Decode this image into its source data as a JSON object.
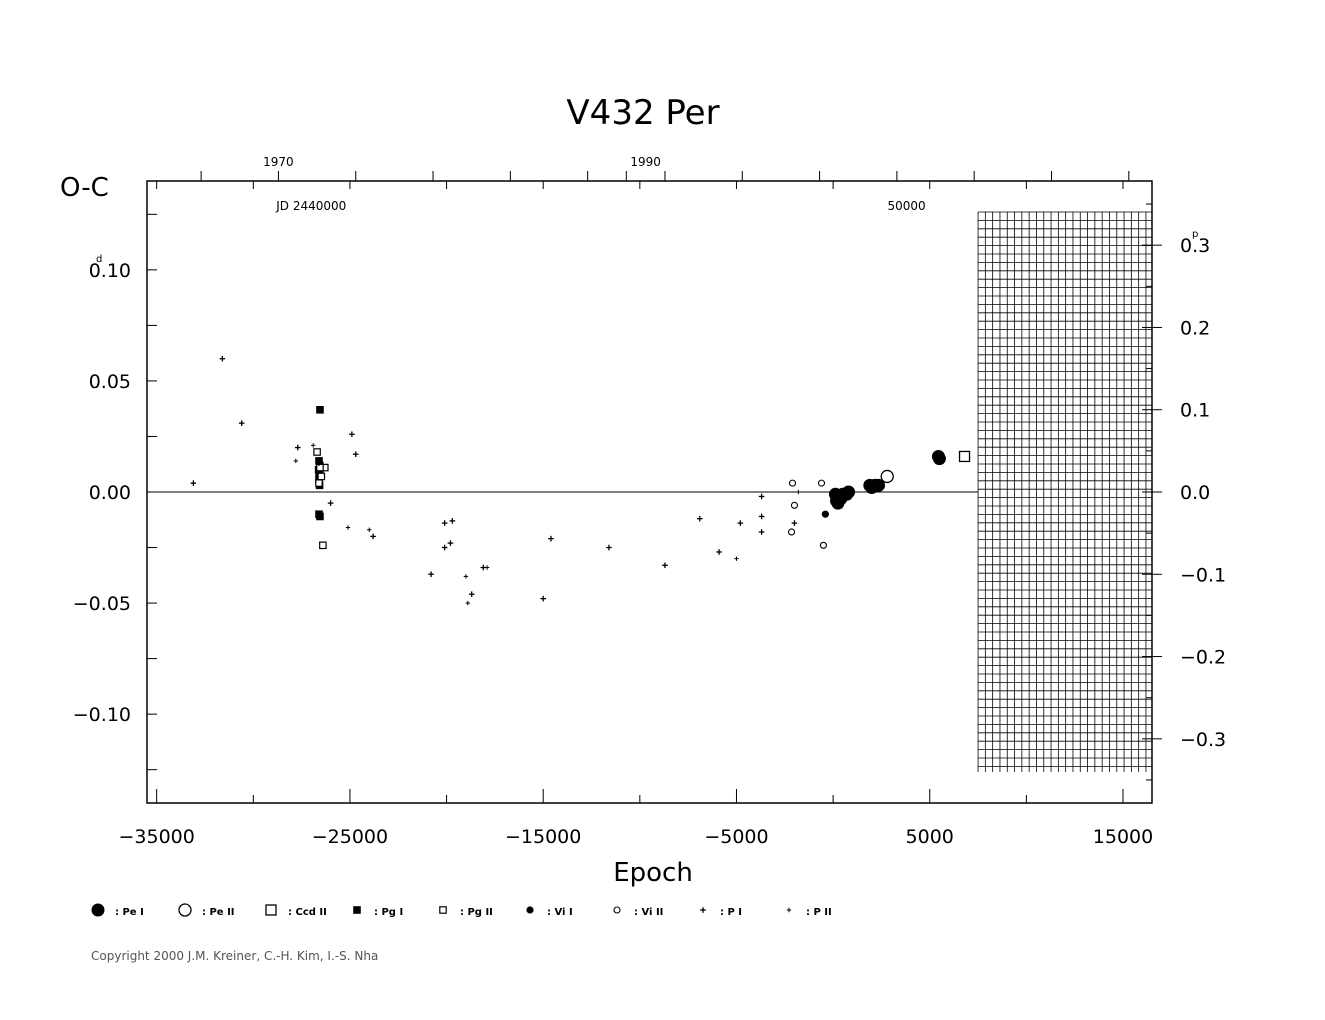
{
  "chart_data": {
    "type": "scatter",
    "title": "V432 Per",
    "xlabel": "Epoch",
    "ylabel": "O-C",
    "xlim": [
      -35500,
      16500
    ],
    "ylim": [
      -0.14,
      0.14
    ],
    "x_ticks": [
      -35000,
      -25000,
      -15000,
      -5000,
      5000,
      15000
    ],
    "x_tick_labels": [
      "−35000",
      "−25000",
      "−15000",
      "−5000",
      "5000",
      "15000"
    ],
    "y_ticks_left": [
      0.1,
      0.05,
      0.0,
      -0.05,
      -0.1
    ],
    "y_tick_labels_left": [
      "0.10",
      "0.05",
      "0.00",
      "−0.05",
      "−0.10"
    ],
    "y_left_unit": "d",
    "y_ticks_right": [
      0.3,
      0.2,
      0.1,
      0.0,
      -0.1,
      -0.2,
      -0.3
    ],
    "y_tick_labels_right": [
      "0.3",
      "0.2",
      "0.1",
      "0.0",
      "−0.1",
      "−0.2",
      "−0.3"
    ],
    "y_right_unit": "p",
    "y_right_per_left": 2.7,
    "top_axis": {
      "year_labels": [
        {
          "x": -28700,
          "text": "1970"
        },
        {
          "x": -9700,
          "text": "1990"
        }
      ],
      "year_ticks": [
        -32700,
        -28700,
        -24700,
        -20700,
        -16700,
        -12700,
        -10700,
        -8700,
        -4700,
        -700,
        3300,
        7300,
        11300,
        15300
      ],
      "jd_labels": [
        {
          "x": -27000,
          "text": "JD 2440000"
        },
        {
          "x": 3800,
          "text": "50000"
        }
      ]
    },
    "hatched_region": {
      "x_from": 7500,
      "x_to": 16500
    },
    "zero_line": true,
    "legend": [
      {
        "symbol": "pe1",
        "label": ": Pe I"
      },
      {
        "symbol": "pe2",
        "label": ": Pe II"
      },
      {
        "symbol": "ccd2",
        "label": ": Ccd II"
      },
      {
        "symbol": "pg1",
        "label": ": Pg I"
      },
      {
        "symbol": "pg2",
        "label": ": Pg II"
      },
      {
        "symbol": "vi1",
        "label": ": Vi I"
      },
      {
        "symbol": "vi2",
        "label": ": Vi II"
      },
      {
        "symbol": "p1",
        "label": ": P I"
      },
      {
        "symbol": "p2",
        "label": ": P II"
      }
    ],
    "series": [
      {
        "symbol": "pe1",
        "points": [
          [
            120,
            -0.001
          ],
          [
            180,
            -0.004
          ],
          [
            250,
            -0.005
          ],
          [
            320,
            -0.002
          ],
          [
            400,
            -0.003
          ],
          [
            500,
            -0.001
          ],
          [
            700,
            -0.001
          ],
          [
            800,
            0.0
          ],
          [
            1900,
            0.003
          ],
          [
            2000,
            0.002
          ],
          [
            2150,
            0.003
          ],
          [
            2250,
            0.003
          ],
          [
            2350,
            0.003
          ],
          [
            5450,
            0.016
          ],
          [
            5500,
            0.015
          ]
        ]
      },
      {
        "symbol": "pe2",
        "points": [
          [
            2800,
            0.007
          ]
        ]
      },
      {
        "symbol": "ccd2",
        "points": [
          [
            6800,
            0.016
          ]
        ]
      },
      {
        "symbol": "pg1",
        "points": [
          [
            -26550,
            0.037
          ],
          [
            -26600,
            0.014
          ],
          [
            -26560,
            0.012
          ],
          [
            -26620,
            0.01
          ],
          [
            -26590,
            0.009
          ],
          [
            -26560,
            0.008
          ],
          [
            -26600,
            0.006
          ],
          [
            -26570,
            0.003
          ],
          [
            -26600,
            -0.01
          ],
          [
            -26550,
            -0.011
          ]
        ]
      },
      {
        "symbol": "pg2",
        "points": [
          [
            -26700,
            0.018
          ],
          [
            -26300,
            0.011
          ],
          [
            -26550,
            0.011
          ],
          [
            -26480,
            0.007
          ],
          [
            -26600,
            0.004
          ],
          [
            -26400,
            -0.024
          ]
        ]
      },
      {
        "symbol": "vi1",
        "points": [
          [
            -400,
            -0.01
          ]
        ]
      },
      {
        "symbol": "vi2",
        "points": [
          [
            -2100,
            0.004
          ],
          [
            -2000,
            -0.006
          ],
          [
            -2150,
            -0.018
          ],
          [
            -600,
            0.004
          ],
          [
            -500,
            -0.024
          ]
        ]
      },
      {
        "symbol": "p1",
        "points": [
          [
            -33100,
            0.004
          ],
          [
            -31600,
            0.06
          ],
          [
            -30600,
            0.031
          ],
          [
            -27700,
            0.02
          ],
          [
            -26600,
            0.013
          ],
          [
            -26000,
            -0.005
          ],
          [
            -24900,
            0.026
          ],
          [
            -24700,
            0.017
          ],
          [
            -23800,
            -0.02
          ],
          [
            -20800,
            -0.037
          ],
          [
            -20100,
            -0.014
          ],
          [
            -19700,
            -0.013
          ],
          [
            -20100,
            -0.025
          ],
          [
            -19800,
            -0.023
          ],
          [
            -18700,
            -0.046
          ],
          [
            -18100,
            -0.034
          ],
          [
            -15000,
            -0.048
          ],
          [
            -14600,
            -0.021
          ],
          [
            -11600,
            -0.025
          ],
          [
            -8700,
            -0.033
          ],
          [
            -6900,
            -0.012
          ],
          [
            -5900,
            -0.027
          ],
          [
            -4800,
            -0.014
          ],
          [
            -3700,
            -0.002
          ],
          [
            -3700,
            -0.011
          ],
          [
            -3700,
            -0.018
          ],
          [
            -2000,
            -0.014
          ]
        ]
      },
      {
        "symbol": "p2",
        "points": [
          [
            -27800,
            0.014
          ],
          [
            -26900,
            0.021
          ],
          [
            -25100,
            -0.016
          ],
          [
            -24000,
            -0.017
          ],
          [
            -19000,
            -0.038
          ],
          [
            -18900,
            -0.05
          ],
          [
            -17900,
            -0.034
          ],
          [
            -5000,
            -0.03
          ],
          [
            -1800,
            0.0
          ]
        ]
      }
    ]
  },
  "copyright": "Copyright 2000 J.M. Kreiner, C.-H. Kim, I.-S. Nha"
}
